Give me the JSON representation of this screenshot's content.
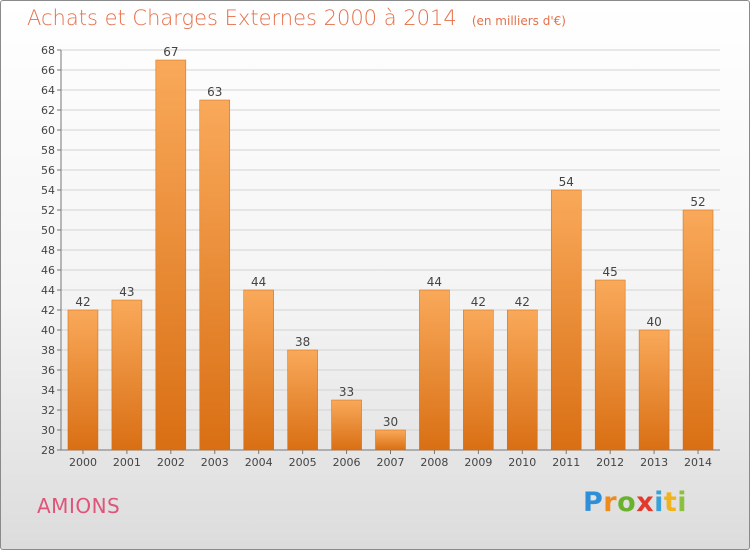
{
  "header": {
    "title": "Achats et Charges Externes 2000 à 2014",
    "subtitle": "(en milliers d'€)"
  },
  "footer": {
    "place": "AMIONS",
    "logo": {
      "text": "Proxiti",
      "letters": [
        "P",
        "r",
        "o",
        "x",
        "i",
        "t",
        "i"
      ]
    }
  },
  "colors": {
    "title": "#e5704a",
    "bar_top": "#f9a95a",
    "bar_bottom": "#d96f14",
    "place": "#e0547a"
  },
  "chart_data": {
    "type": "bar",
    "title": "Achats et Charges Externes 2000 à 2014",
    "subtitle": "(en milliers d'€)",
    "categories": [
      "2000",
      "2001",
      "2002",
      "2003",
      "2004",
      "2005",
      "2006",
      "2007",
      "2008",
      "2009",
      "2010",
      "2011",
      "2012",
      "2013",
      "2014"
    ],
    "values": [
      42,
      43,
      67,
      63,
      44,
      38,
      33,
      30,
      44,
      42,
      42,
      54,
      45,
      40,
      52
    ],
    "ylim": [
      28,
      68
    ],
    "yticks": [
      28,
      30,
      32,
      34,
      36,
      38,
      40,
      42,
      44,
      46,
      48,
      50,
      52,
      54,
      56,
      58,
      60,
      62,
      64,
      66,
      68
    ],
    "grid": true,
    "legend": false,
    "data_labels": true
  }
}
